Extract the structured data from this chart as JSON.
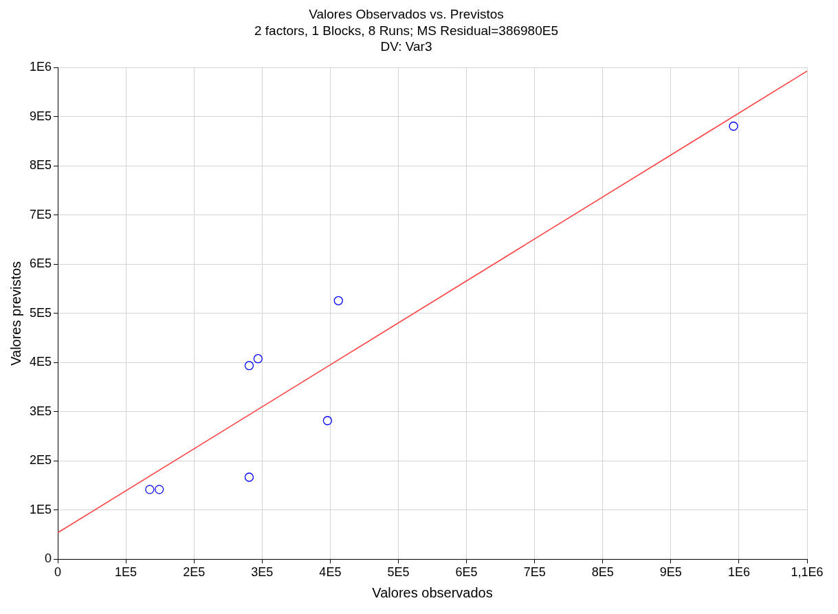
{
  "chart_data": {
    "type": "scatter",
    "title": "Valores Observados vs. Previstos",
    "subtitle": "2 factors, 1 Blocks, 8 Runs; MS Residual=386980E5",
    "annotations": [
      "DV: Var3"
    ],
    "xlabel": "Valores observados",
    "ylabel": "Valores previstos",
    "xlim": [
      0,
      1100000
    ],
    "ylim": [
      0,
      1000000
    ],
    "xticks": [
      0,
      {
        "value": 100000,
        "label": "1E5"
      },
      {
        "value": 200000,
        "label": "2E5"
      },
      {
        "value": 300000,
        "label": "3E5"
      },
      {
        "value": 400000,
        "label": "4E5"
      },
      {
        "value": 500000,
        "label": "5E5"
      },
      {
        "value": 600000,
        "label": "6E5"
      },
      {
        "value": 700000,
        "label": "7E5"
      },
      {
        "value": 800000,
        "label": "8E5"
      },
      {
        "value": 900000,
        "label": "9E5"
      },
      {
        "value": 1000000,
        "label": "1E6"
      },
      {
        "value": 1100000,
        "label": "1,1E6"
      }
    ],
    "yticks": [
      0,
      {
        "value": 100000,
        "label": "1E5"
      },
      {
        "value": 200000,
        "label": "2E5"
      },
      {
        "value": 300000,
        "label": "3E5"
      },
      {
        "value": 400000,
        "label": "4E5"
      },
      {
        "value": 500000,
        "label": "5E5"
      },
      {
        "value": 600000,
        "label": "6E5"
      },
      {
        "value": 700000,
        "label": "7E5"
      },
      {
        "value": 800000,
        "label": "8E5"
      },
      {
        "value": 900000,
        "label": "9E5"
      },
      {
        "value": 1000000,
        "label": "1E6"
      }
    ],
    "grid": true,
    "legend": false,
    "series": [
      {
        "color": "#0000ff",
        "marker": "circle",
        "x": [
          135000,
          149000,
          281000,
          294000,
          281000,
          396000,
          412000,
          992000
        ],
        "values": [
          142000,
          142000,
          394000,
          408000,
          167000,
          282000,
          526000,
          881000
        ]
      },
      {
        "type": "line",
        "color": "#ff4040",
        "marker": "none",
        "line_style": "solid",
        "x": [
          0,
          1100000
        ],
        "values": [
          54000,
          993000
        ]
      }
    ]
  }
}
